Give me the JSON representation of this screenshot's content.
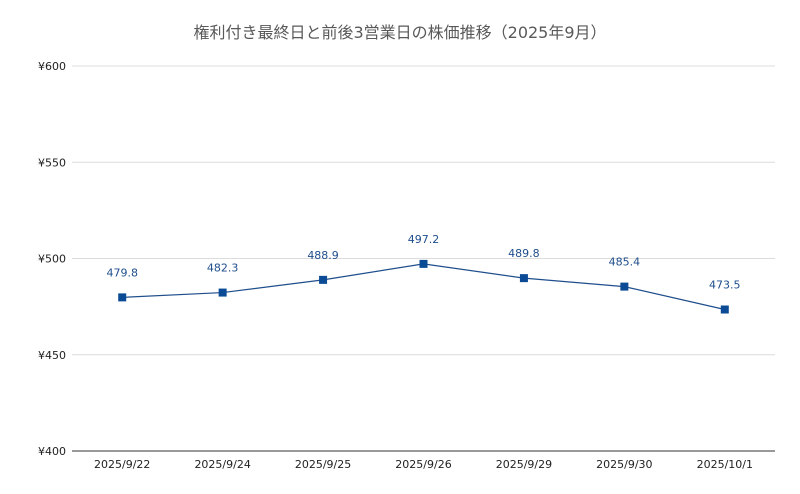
{
  "chart_data": {
    "type": "line",
    "title": "権利付き最終日と前後3営業日の株価推移（2025年9月）",
    "xlabel": "",
    "ylabel": "",
    "categories": [
      "2025/9/22",
      "2025/9/24",
      "2025/9/25",
      "2025/9/26",
      "2025/9/29",
      "2025/9/30",
      "2025/10/1"
    ],
    "series": [
      {
        "values": [
          479.8,
          482.3,
          488.9,
          497.2,
          489.8,
          485.4,
          473.5
        ],
        "data_labels": [
          "479.8",
          "482.3",
          "488.9",
          "497.2",
          "489.8",
          "485.4",
          "473.5"
        ]
      }
    ],
    "ylim": [
      400,
      600
    ],
    "yticks": [
      400,
      450,
      500,
      550,
      600
    ],
    "ytick_labels": [
      "¥400",
      "¥450",
      "¥500",
      "¥550",
      "¥600"
    ],
    "grid": true,
    "legend": "none",
    "colors": {
      "line": "#1f4e8c",
      "marker": "#0b4a94",
      "label": "#1f4e8c",
      "grid": "#dcdcdc"
    }
  }
}
